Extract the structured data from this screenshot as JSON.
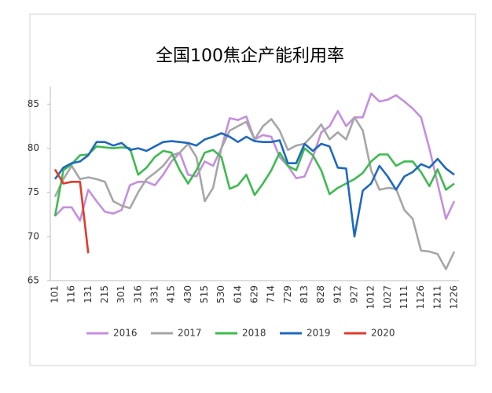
{
  "chart_data": {
    "type": "line",
    "title": "全国100焦企产能利用率",
    "categories": [
      "101",
      null,
      "116",
      null,
      "131",
      null,
      "215",
      null,
      "301",
      null,
      "316",
      null,
      "331",
      null,
      "415",
      null,
      "430",
      null,
      "515",
      null,
      "530",
      null,
      "614",
      null,
      "629",
      null,
      "714",
      null,
      "729",
      null,
      "813",
      null,
      "828",
      null,
      "912",
      null,
      "927",
      null,
      "1012",
      null,
      "1027",
      null,
      "1111",
      null,
      "1126",
      null,
      "1211",
      null,
      "1226"
    ],
    "ylim": [
      65,
      87
    ],
    "yticks": [
      65,
      70,
      75,
      80,
      85
    ],
    "series": [
      {
        "name": "2016",
        "color": "#c58ee0",
        "values": [
          72.3,
          73.3,
          73.3,
          71.8,
          75.3,
          74,
          72.8,
          72.6,
          73,
          75.8,
          76.2,
          76.2,
          75.8,
          77,
          78.5,
          79.5,
          77,
          76.8,
          78.5,
          78,
          80,
          83.4,
          83.2,
          83.6,
          81,
          81.5,
          81.3,
          79,
          78,
          76.6,
          76.8,
          79,
          81.8,
          82.5,
          84.2,
          82.5,
          83.5,
          83.5,
          86.2,
          85.3,
          85.5,
          86,
          85.3,
          84.5,
          83.5,
          80,
          76,
          72,
          74
        ]
      },
      {
        "name": "2017",
        "color": "#a6a6a6",
        "values": [
          74.5,
          76.5,
          78,
          76.5,
          76.7,
          76.5,
          76.2,
          74,
          73.5,
          73.2,
          75,
          76.5,
          77.2,
          78,
          79.2,
          79.5,
          80.5,
          79,
          74,
          75.5,
          80,
          82,
          82.5,
          83,
          81,
          82.5,
          83.3,
          82,
          79.8,
          80.3,
          80.5,
          81.5,
          82.7,
          81,
          81.8,
          81,
          83.5,
          82,
          77.5,
          75.3,
          75.5,
          75.4,
          73,
          72,
          68.4,
          68.3,
          68,
          66.3,
          68.3
        ]
      },
      {
        "name": "2018",
        "color": "#3dbb4e",
        "values": [
          72.3,
          77.5,
          78.2,
          79.2,
          79.3,
          80.2,
          80.1,
          80,
          80.1,
          80,
          77,
          77.8,
          79,
          79.7,
          79.5,
          77.5,
          76,
          77.5,
          79.5,
          79.8,
          79,
          75.4,
          75.8,
          77,
          74.7,
          76,
          77.5,
          79.5,
          78,
          77.5,
          80,
          79.2,
          77.5,
          74.8,
          75.5,
          76,
          76.5,
          77.2,
          78.5,
          79.3,
          79.3,
          78,
          78.5,
          78.5,
          77.3,
          75.7,
          77.6,
          75.3,
          76
        ]
      },
      {
        "name": "2019",
        "color": "#1f68c1",
        "values": [
          76.5,
          77.8,
          78.3,
          78.5,
          79.2,
          80.7,
          80.7,
          80.3,
          80.6,
          79.8,
          80,
          79.7,
          80.2,
          80.7,
          80.8,
          80.7,
          80.6,
          80.3,
          81,
          81.3,
          81.7,
          81.3,
          80.7,
          81.3,
          80.8,
          80.7,
          80.7,
          80.9,
          78.3,
          78.3,
          80.5,
          79.7,
          80.5,
          80.2,
          77.8,
          77.7,
          70,
          75.2,
          76,
          78,
          76.8,
          75.3,
          76.8,
          77.3,
          78.2,
          77.8,
          78.8,
          77.7,
          77
        ]
      },
      {
        "name": "2020",
        "color": "#e23a2c",
        "values": [
          77.6,
          76,
          76.2,
          76.2,
          68.1,
          null,
          null,
          null,
          null,
          null,
          null,
          null,
          null,
          null,
          null,
          null,
          null,
          null,
          null,
          null,
          null,
          null,
          null,
          null,
          null,
          null,
          null,
          null,
          null,
          null,
          null,
          null,
          null,
          null,
          null,
          null,
          null,
          null,
          null,
          null,
          null,
          null,
          null,
          null,
          null,
          null,
          null,
          null,
          null
        ]
      }
    ]
  }
}
